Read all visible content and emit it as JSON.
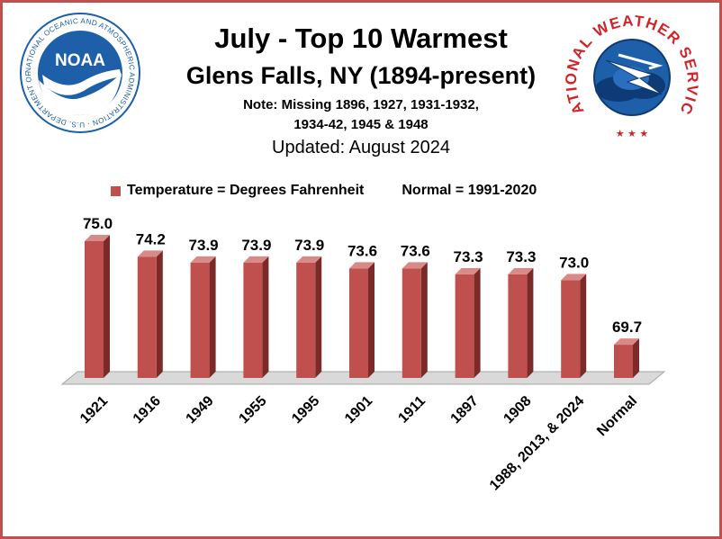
{
  "header": {
    "title": "July - Top 10 Warmest",
    "subtitle": "Glens Falls, NY (1894-present)",
    "note_line1": "Note: Missing 1896, 1927, 1931-1932,",
    "note_line2": "1934-42, 1945 & 1948",
    "updated": "Updated: August 2024"
  },
  "legend": {
    "series_label": "Temperature = Degrees Fahrenheit",
    "normal_label": "Normal = 1991-2020"
  },
  "logos": {
    "noaa_text": "NOAA",
    "noaa_ring_text": "NATIONAL OCEANIC AND ATMOSPHERIC ADMINISTRATION · U.S. DEPARTMENT OF COMMERCE",
    "nws_ring_text": "NATIONAL WEATHER SERVICE"
  },
  "colors": {
    "bar_front": "#c0504d",
    "bar_side": "#7b2a28",
    "bar_top": "#d88a88",
    "floor": "#d9d9d9",
    "frame": "#c0504d",
    "noaa_blue": "#1d5fa8",
    "nws_red": "#d2232a"
  },
  "chart_data": {
    "type": "bar",
    "categories": [
      "1921",
      "1916",
      "1949",
      "1955",
      "1995",
      "1901",
      "1911",
      "1897",
      "1908",
      "1988, 2013, & 2024",
      "Normal"
    ],
    "values": [
      75.0,
      74.2,
      73.9,
      73.9,
      73.9,
      73.6,
      73.6,
      73.3,
      73.3,
      73.0,
      69.7
    ],
    "labels": [
      "75.0",
      "74.2",
      "73.9",
      "73.9",
      "73.9",
      "73.6",
      "73.6",
      "73.3",
      "73.3",
      "73.0",
      "69.7"
    ],
    "title": "July - Top 10 Warmest",
    "ylim": [
      68,
      75.5
    ],
    "grid": false,
    "legend_position": "top"
  }
}
